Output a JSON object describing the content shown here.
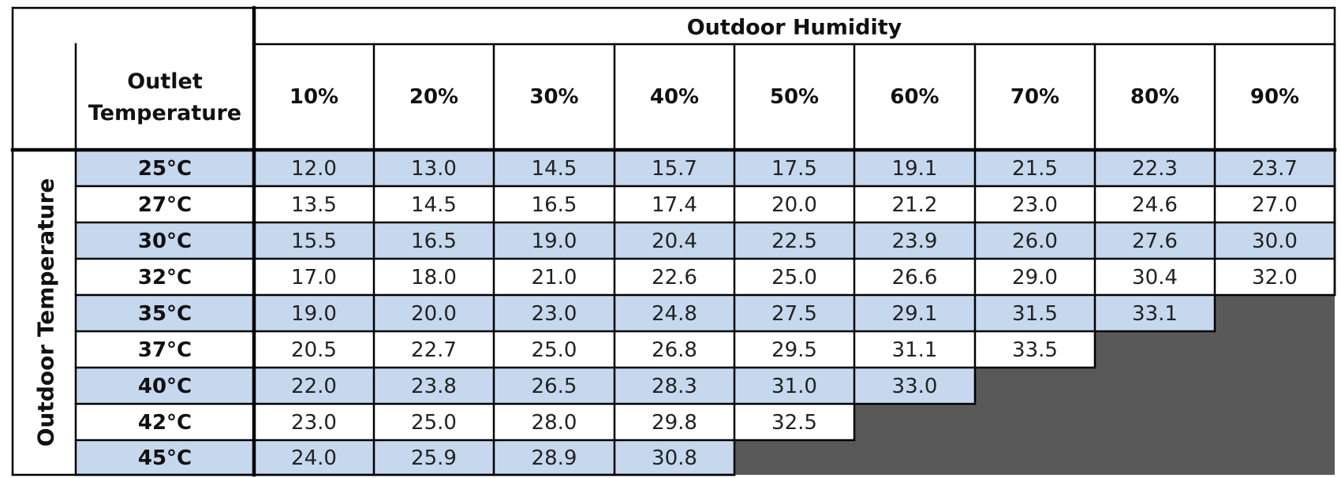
{
  "chart_data": {
    "type": "table",
    "column_group_label": "Outdoor Humidity",
    "row_group_label": "Outdoor Temperature",
    "row_header_label": "Outlet Temperature",
    "columns": [
      "10%",
      "20%",
      "30%",
      "40%",
      "50%",
      "60%",
      "70%",
      "80%",
      "90%"
    ],
    "rows": [
      "25°C",
      "27°C",
      "30°C",
      "32°C",
      "35°C",
      "37°C",
      "40°C",
      "42°C",
      "45°C"
    ],
    "values": [
      [
        "12.0",
        "13.0",
        "14.5",
        "15.7",
        "17.5",
        "19.1",
        "21.5",
        "22.3",
        "23.7"
      ],
      [
        "13.5",
        "14.5",
        "16.5",
        "17.4",
        "20.0",
        "21.2",
        "23.0",
        "24.6",
        "27.0"
      ],
      [
        "15.5",
        "16.5",
        "19.0",
        "20.4",
        "22.5",
        "23.9",
        "26.0",
        "27.6",
        "30.0"
      ],
      [
        "17.0",
        "18.0",
        "21.0",
        "22.6",
        "25.0",
        "26.6",
        "29.0",
        "30.4",
        "32.0"
      ],
      [
        "19.0",
        "20.0",
        "23.0",
        "24.8",
        "27.5",
        "29.1",
        "31.5",
        "33.1",
        null
      ],
      [
        "20.5",
        "22.7",
        "25.0",
        "26.8",
        "29.5",
        "31.1",
        "33.5",
        null,
        null
      ],
      [
        "22.0",
        "23.8",
        "26.5",
        "28.3",
        "31.0",
        "33.0",
        null,
        null,
        null
      ],
      [
        "23.0",
        "25.0",
        "28.0",
        "29.8",
        "32.5",
        null,
        null,
        null,
        null
      ],
      [
        "24.0",
        "25.9",
        "28.9",
        "30.8",
        null,
        null,
        null,
        null,
        null
      ]
    ],
    "colors": {
      "shaded_row": "#c5d8ee",
      "empty_cell": "#595959",
      "border": "#000000"
    }
  }
}
